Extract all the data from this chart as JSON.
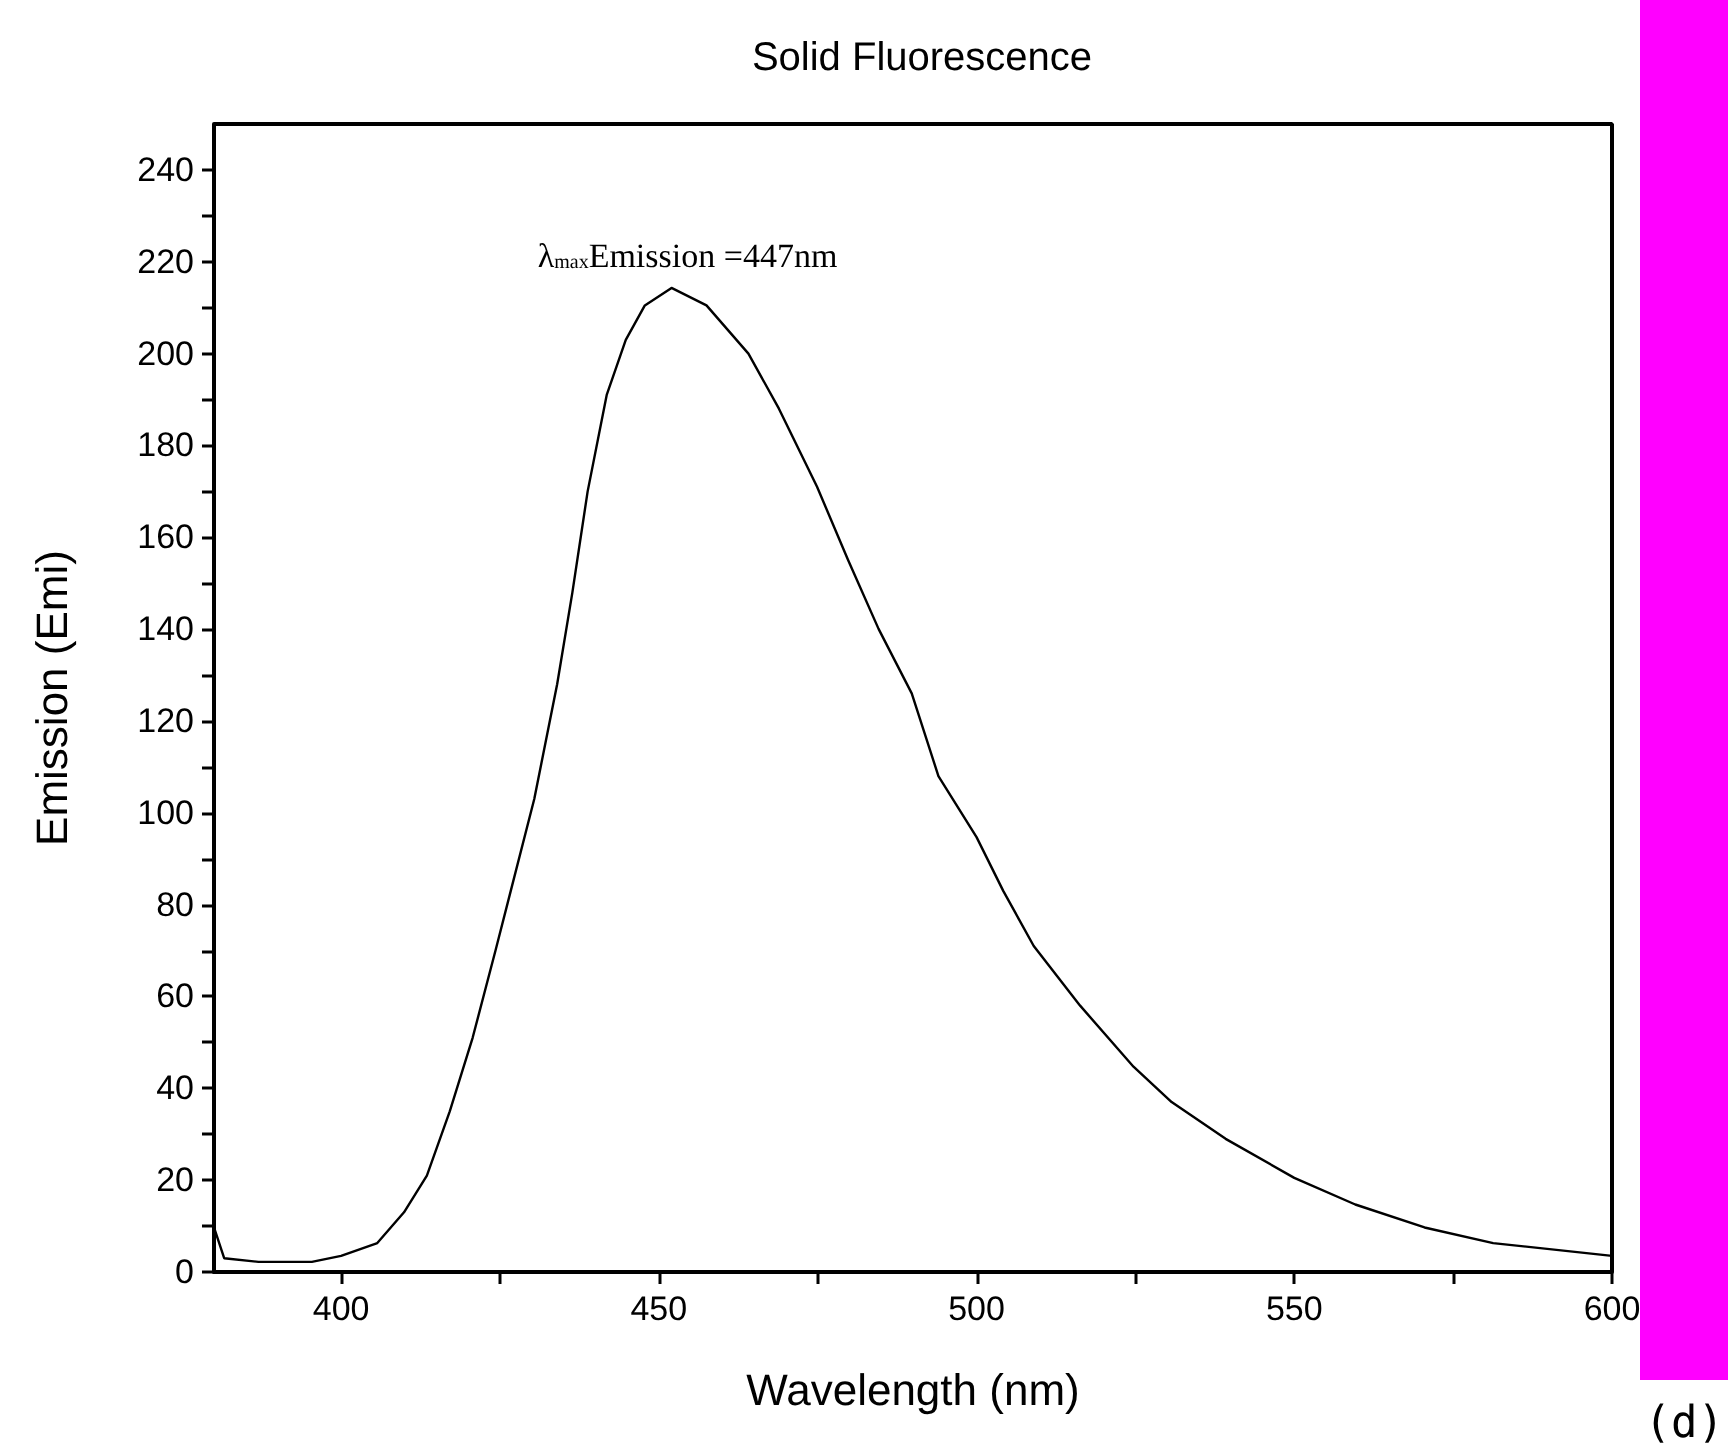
{
  "chart_data": {
    "type": "line",
    "title": "Solid Fluorescence",
    "xlabel": "Wavelength (nm)",
    "ylabel": "Emission (Emi)",
    "xlim": [
      380,
      600
    ],
    "ylim": [
      0,
      250
    ],
    "xticks": [
      400,
      {
        "value": 425,
        "label": null
      },
      450,
      {
        "value": 475,
        "label": null
      },
      500,
      {
        "value": 525,
        "label": null
      },
      550,
      {
        "value": 575,
        "label": null
      },
      600
    ],
    "yticks": [
      0,
      {
        "value": 10,
        "label": null
      },
      20,
      {
        "value": 30,
        "label": null
      },
      40,
      {
        "value": 50,
        "label": null
      },
      60,
      {
        "value": 70,
        "label": null
      },
      80,
      {
        "value": 90,
        "label": null
      },
      100,
      {
        "value": 110,
        "label": null
      },
      120,
      {
        "value": 130,
        "label": null
      },
      140,
      {
        "value": 150,
        "label": null
      },
      160,
      {
        "value": 170,
        "label": null
      },
      180,
      {
        "value": 190,
        "label": null
      },
      200,
      {
        "value": 210,
        "label": null
      },
      220,
      {
        "value": 230,
        "label": null
      },
      240
    ],
    "grid": false,
    "marker": "none",
    "line_style": "solid",
    "series": [
      {
        "color": "#000000",
        "x": [
          380,
          381.6,
          387,
          395.4,
          400,
          405.7,
          409.9,
          413.5,
          417.1,
          420.7,
          424.3,
          426.7,
          430.4,
          434,
          436.4,
          438.8,
          441.8,
          444.8,
          447.8,
          452,
          457.5,
          464.1,
          468.9,
          474.9,
          479.8,
          484.6,
          489.8,
          494,
          500,
          504.2,
          509,
          516.3,
          524.7,
          530.7,
          539.2,
          550,
          559.6,
          570.5,
          581.3,
          600
        ],
        "values": [
          9.7,
          3,
          2.2,
          2.2,
          3.5,
          6.3,
          13,
          21,
          35,
          51,
          70,
          83,
          103,
          128,
          148,
          170,
          191,
          203,
          210.5,
          214.3,
          210.5,
          200,
          188,
          171,
          155,
          140,
          126,
          108,
          94.7,
          83,
          71,
          58,
          44.7,
          37,
          29,
          20.5,
          14.7,
          9.7,
          6.3,
          3.5
        ]
      }
    ],
    "annotations": [
      {
        "text": "λ$_{max}$Emission =447nm",
        "x": 452,
        "y": 214
      },
      "(d)"
    ]
  }
}
